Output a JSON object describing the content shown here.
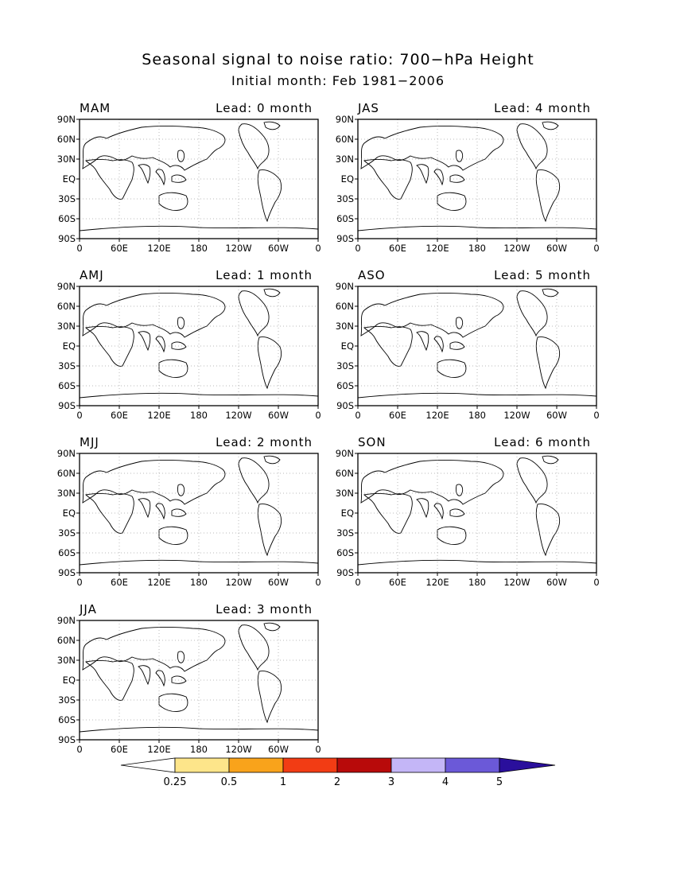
{
  "title": "Seasonal signal to noise ratio: 700−hPa Height",
  "subtitle": "Initial month: Feb 1981−2006",
  "lat_labels": [
    "90N",
    "60N",
    "30N",
    "EQ",
    "30S",
    "60S",
    "90S"
  ],
  "lon_labels": [
    "0",
    "60E",
    "120E",
    "180",
    "120W",
    "60W",
    "0"
  ],
  "panels": [
    {
      "season": "MAM",
      "lead": "Lead: 0 month"
    },
    {
      "season": "JAS",
      "lead": "Lead: 4 month"
    },
    {
      "season": "AMJ",
      "lead": "Lead: 1 month"
    },
    {
      "season": "ASO",
      "lead": "Lead: 5 month"
    },
    {
      "season": "MJJ",
      "lead": "Lead: 2 month"
    },
    {
      "season": "SON",
      "lead": "Lead: 6 month"
    },
    {
      "season": "JJA",
      "lead": "Lead: 3 month"
    }
  ],
  "colorbar": {
    "labels": [
      "0.25",
      "0.5",
      "1",
      "2",
      "3",
      "4",
      "5"
    ],
    "colors": [
      "#ffffff",
      "#fde58a",
      "#f9a31b",
      "#f23c14",
      "#b80a0a",
      "#c4b6f7",
      "#6b59d8",
      "#2a0f9c"
    ]
  }
}
